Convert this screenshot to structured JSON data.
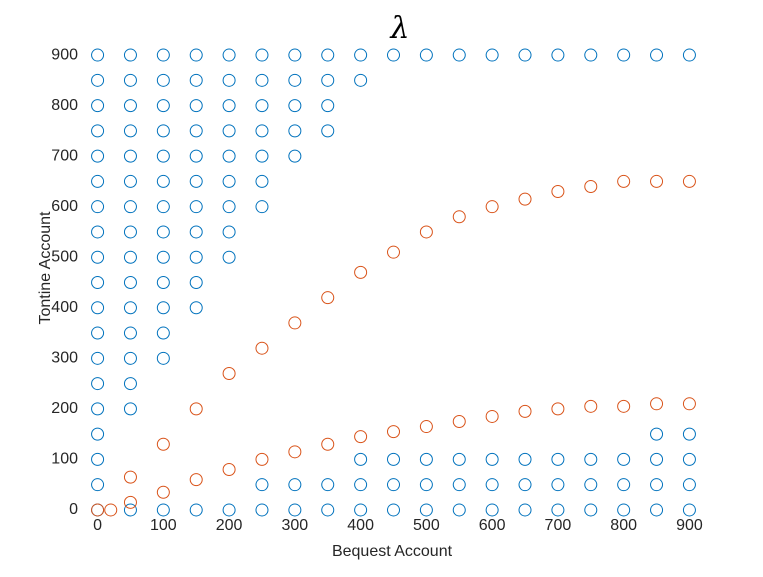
{
  "chart_data": {
    "type": "scatter",
    "title": "λ",
    "xlabel": "Bequest Account",
    "ylabel": "Tontine Account",
    "xlim": [
      -10,
      910
    ],
    "ylim": [
      -10,
      910
    ],
    "xticks": [
      0,
      100,
      200,
      300,
      400,
      500,
      600,
      700,
      800,
      900
    ],
    "yticks": [
      0,
      100,
      200,
      300,
      400,
      500,
      600,
      700,
      800,
      900
    ],
    "grid": false,
    "series": [
      {
        "color": "#0072bd",
        "x": [
          0,
          0,
          0,
          0,
          0,
          0,
          0,
          0,
          0,
          0,
          0,
          0,
          0,
          0,
          0,
          0,
          0,
          0,
          0,
          50,
          50,
          50,
          50,
          50,
          50,
          50,
          50,
          50,
          50,
          50,
          50,
          50,
          50,
          50,
          50,
          100,
          100,
          100,
          100,
          100,
          100,
          100,
          100,
          100,
          100,
          100,
          100,
          100,
          100,
          150,
          150,
          150,
          150,
          150,
          150,
          150,
          150,
          150,
          150,
          150,
          150,
          200,
          200,
          200,
          200,
          200,
          200,
          200,
          200,
          200,
          200,
          250,
          250,
          250,
          250,
          250,
          250,
          250,
          250,
          250,
          300,
          300,
          300,
          300,
          300,
          300,
          300,
          350,
          350,
          350,
          350,
          350,
          350,
          400,
          400,
          400,
          400,
          400,
          450,
          450,
          450,
          450,
          500,
          500,
          500,
          500,
          550,
          550,
          550,
          550,
          600,
          600,
          600,
          600,
          650,
          650,
          650,
          650,
          700,
          700,
          700,
          700,
          750,
          750,
          750,
          750,
          800,
          800,
          800,
          800,
          850,
          850,
          850,
          850,
          850,
          900,
          900,
          900,
          900,
          900
        ],
        "values": [
          0,
          50,
          100,
          150,
          200,
          250,
          300,
          350,
          400,
          450,
          500,
          550,
          600,
          650,
          700,
          750,
          800,
          850,
          900,
          0,
          200,
          250,
          300,
          350,
          400,
          450,
          500,
          550,
          600,
          650,
          700,
          750,
          800,
          850,
          900,
          0,
          300,
          350,
          400,
          450,
          500,
          550,
          600,
          650,
          700,
          750,
          800,
          850,
          900,
          0,
          400,
          450,
          500,
          550,
          600,
          650,
          700,
          750,
          800,
          850,
          900,
          0,
          500,
          550,
          600,
          650,
          700,
          750,
          800,
          850,
          900,
          0,
          50,
          600,
          650,
          700,
          750,
          800,
          850,
          900,
          0,
          50,
          700,
          750,
          800,
          850,
          900,
          0,
          50,
          750,
          800,
          850,
          900,
          0,
          50,
          100,
          850,
          900,
          0,
          50,
          100,
          900,
          0,
          50,
          100,
          900,
          0,
          50,
          100,
          900,
          0,
          50,
          100,
          900,
          0,
          50,
          100,
          900,
          0,
          50,
          100,
          900,
          0,
          50,
          100,
          900,
          0,
          50,
          100,
          900,
          0,
          50,
          100,
          150,
          900,
          0,
          50,
          100,
          150,
          900
        ]
      },
      {
        "color": "#d95319",
        "x": [
          0,
          50,
          100,
          150,
          200,
          250,
          300,
          350,
          400,
          450,
          500,
          550,
          600,
          650,
          700,
          750,
          800,
          850,
          900,
          20,
          50,
          100,
          150,
          200,
          250,
          300,
          350,
          400,
          450,
          500,
          550,
          600,
          650,
          700,
          750,
          800,
          850,
          900
        ],
        "values": [
          0,
          65,
          130,
          200,
          270,
          320,
          370,
          420,
          470,
          510,
          550,
          580,
          600,
          615,
          630,
          640,
          650,
          650,
          650,
          0,
          15,
          35,
          60,
          80,
          100,
          115,
          130,
          145,
          155,
          165,
          175,
          185,
          195,
          200,
          205,
          205,
          210,
          210
        ]
      }
    ]
  }
}
